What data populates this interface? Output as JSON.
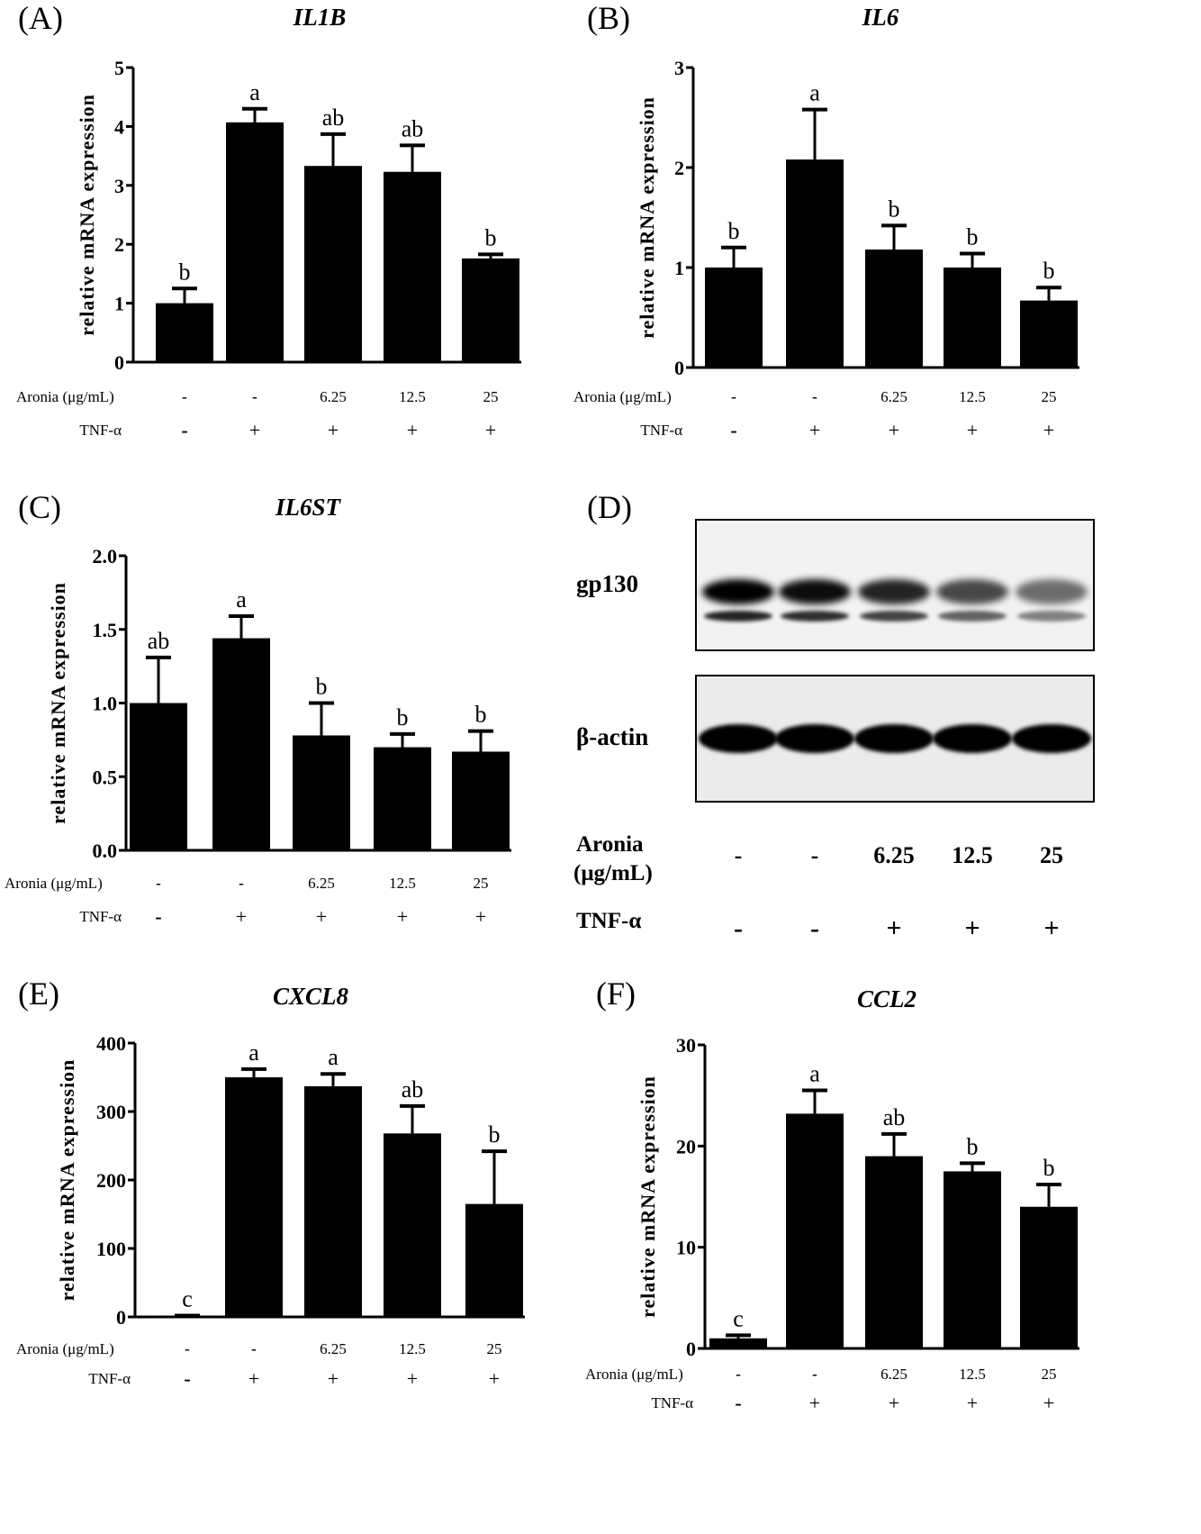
{
  "chart_data": [
    {
      "type": "bar",
      "panel": "(A)",
      "title": "IL1B",
      "ylabel": "relative mRNA expression",
      "ylim": [
        0,
        5
      ],
      "yticks": [
        "0",
        "1",
        "2",
        "3",
        "4",
        "5"
      ],
      "categories": [
        "control",
        "TNF-α",
        "Aronia 6.25 + TNF-α",
        "Aronia 12.5 + TNF-α",
        "Aronia 25 + TNF-α"
      ],
      "values": [
        1.0,
        4.07,
        3.33,
        3.23,
        1.76
      ],
      "errors": [
        0.25,
        0.23,
        0.54,
        0.45,
        0.07
      ],
      "letters": [
        "b",
        "a",
        "ab",
        "ab",
        "b"
      ],
      "rows": {
        "aronia_label": "Aronia (μg/mL)",
        "aronia": [
          "-",
          "-",
          "6.25",
          "12.5",
          "25"
        ],
        "tnf_label": "TNF-α",
        "tnf": [
          "-",
          "+",
          "+",
          "+",
          "+"
        ]
      }
    },
    {
      "type": "bar",
      "panel": "(B)",
      "title": "IL6",
      "ylabel": "relative mRNA expression",
      "ylim": [
        0,
        3
      ],
      "yticks": [
        "0",
        "1",
        "2",
        "3"
      ],
      "categories": [
        "control",
        "TNF-α",
        "Aronia 6.25 + TNF-α",
        "Aronia 12.5 + TNF-α",
        "Aronia 25 + TNF-α"
      ],
      "values": [
        1.0,
        2.08,
        1.18,
        1.0,
        0.67
      ],
      "errors": [
        0.2,
        0.5,
        0.24,
        0.14,
        0.13
      ],
      "letters": [
        "b",
        "a",
        "b",
        "b",
        "b"
      ],
      "rows": {
        "aronia_label": "Aronia (μg/mL)",
        "aronia": [
          "-",
          "-",
          "6.25",
          "12.5",
          "25"
        ],
        "tnf_label": "TNF-α",
        "tnf": [
          "-",
          "+",
          "+",
          "+",
          "+"
        ]
      }
    },
    {
      "type": "bar",
      "panel": "(C)",
      "title": "IL6ST",
      "ylabel": "relative mRNA expression",
      "ylim": [
        0,
        2.0
      ],
      "yticks": [
        "0.0",
        "0.5",
        "1.0",
        "1.5",
        "2.0"
      ],
      "categories": [
        "control",
        "TNF-α",
        "Aronia 6.25 + TNF-α",
        "Aronia 12.5 + TNF-α",
        "Aronia 25 + TNF-α"
      ],
      "values": [
        1.0,
        1.44,
        0.78,
        0.7,
        0.67
      ],
      "errors": [
        0.31,
        0.15,
        0.22,
        0.09,
        0.14
      ],
      "letters": [
        "ab",
        "a",
        "b",
        "b",
        "b"
      ],
      "rows": {
        "aronia_label": "Aronia (μg/mL)",
        "aronia": [
          "-",
          "-",
          "6.25",
          "12.5",
          "25"
        ],
        "tnf_label": "TNF-α",
        "tnf": [
          "-",
          "+",
          "+",
          "+",
          "+"
        ]
      }
    },
    {
      "type": "bar",
      "panel": "(E)",
      "title": "CXCL8",
      "ylabel": "relative mRNA expression",
      "ylim": [
        0,
        400
      ],
      "yticks": [
        "0",
        "100",
        "200",
        "300",
        "400"
      ],
      "categories": [
        "control",
        "TNF-α",
        "Aronia 6.25 + TNF-α",
        "Aronia 12.5 + TNF-α",
        "Aronia 25 + TNF-α"
      ],
      "values": [
        2,
        350,
        337,
        268,
        165
      ],
      "errors": [
        0,
        12,
        18,
        40,
        77
      ],
      "letters": [
        "c",
        "a",
        "a",
        "ab",
        "b"
      ],
      "rows": {
        "aronia_label": "Aronia (μg/mL)",
        "aronia": [
          "-",
          "-",
          "6.25",
          "12.5",
          "25"
        ],
        "tnf_label": "TNF-α",
        "tnf": [
          "-",
          "+",
          "+",
          "+",
          "+"
        ]
      }
    },
    {
      "type": "bar",
      "panel": "(F)",
      "title": "CCL2",
      "ylabel": "relative mRNA expression",
      "ylim": [
        0,
        30
      ],
      "yticks": [
        "0",
        "10",
        "20",
        "30"
      ],
      "categories": [
        "control",
        "TNF-α",
        "Aronia 6.25 + TNF-α",
        "Aronia 12.5 + TNF-α",
        "Aronia 25 + TNF-α"
      ],
      "values": [
        1.0,
        23.2,
        19.0,
        17.5,
        14.0
      ],
      "errors": [
        0.3,
        2.3,
        2.2,
        0.8,
        2.2
      ],
      "letters": [
        "c",
        "a",
        "ab",
        "b",
        "b"
      ],
      "rows": {
        "aronia_label": "Aronia (μg/mL)",
        "aronia": [
          "-",
          "-",
          "6.25",
          "12.5",
          "25"
        ],
        "tnf_label": "TNF-α",
        "tnf": [
          "-",
          "+",
          "+",
          "+",
          "+"
        ]
      }
    }
  ],
  "western_blot": {
    "panel": "(D)",
    "bands": [
      {
        "label": "gp130",
        "intensity": [
          1.0,
          0.95,
          0.85,
          0.7,
          0.55
        ]
      },
      {
        "label": "β-actin",
        "intensity": [
          1.0,
          1.0,
          1.0,
          1.0,
          1.0
        ]
      }
    ],
    "aronia_label_line1": "Aronia",
    "aronia_label_line2": "(μg/mL)",
    "aronia": [
      "-",
      "-",
      "6.25",
      "12.5",
      "25"
    ],
    "tnf_label": "TNF-α",
    "tnf": [
      "-",
      "-",
      "+",
      "+",
      "+"
    ]
  }
}
